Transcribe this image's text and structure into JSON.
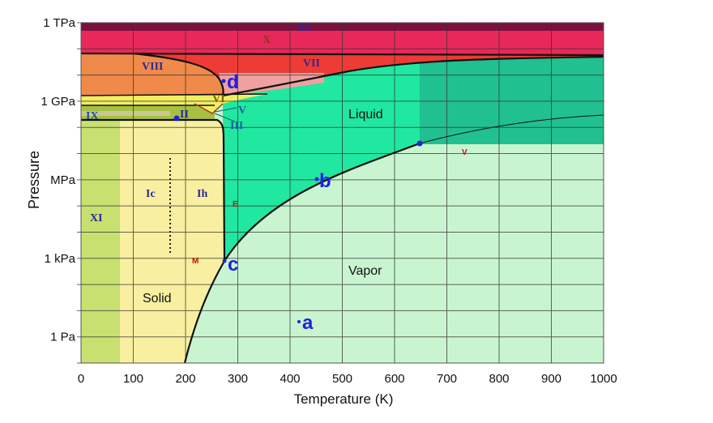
{
  "diagram": {
    "x_axis": {
      "label": "Temperature (K)",
      "ticks": [
        "0",
        "100",
        "200",
        "300",
        "400",
        "500",
        "600",
        "700",
        "800",
        "900",
        "1000"
      ],
      "range": [
        0,
        1000
      ]
    },
    "y_axis": {
      "label": "Pressure",
      "ticks": [
        "1 TPa",
        "1 GPa",
        "MPa",
        "1 kPa",
        "1 Pa"
      ],
      "scale": "log"
    },
    "phases": {
      "solid": "Solid",
      "liquid": "Liquid",
      "vapor": "Vapor"
    },
    "ice_labels": {
      "xi_top": "XI",
      "x": "X",
      "vii": "VII",
      "viii": "VIII",
      "vi": "VI",
      "v": "V",
      "iii": "III",
      "ii": "II",
      "ix": "IX",
      "ic": "Ic",
      "ih": "Ih",
      "xi": "XI"
    },
    "markers": {
      "e": "E",
      "m": "M",
      "v": "V"
    },
    "points": {
      "a": "a",
      "b": "b",
      "c": "c",
      "d": "d"
    },
    "colors": {
      "point_label": "#2020e0",
      "liquid": "#20e8a0",
      "supercritical": "#20c090",
      "vapor": "#c8f5d0",
      "ice_ih": "#f8f0a0"
    }
  }
}
